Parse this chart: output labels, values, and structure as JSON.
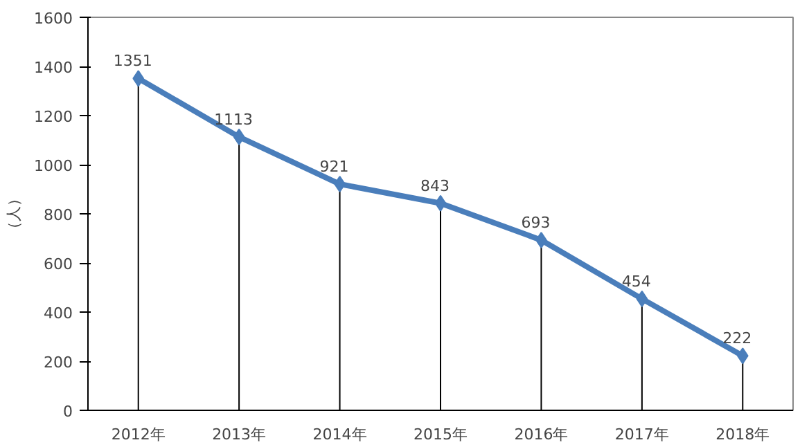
{
  "chart_data": {
    "type": "line",
    "ylabel": "（人）",
    "categories": [
      "2012年",
      "2013年",
      "2014年",
      "2015年",
      "2016年",
      "2017年",
      "2018年"
    ],
    "series": [
      {
        "color": "#4a7ebb",
        "values": [
          1351,
          1113,
          921,
          843,
          693,
          454,
          222
        ]
      }
    ],
    "ylim": [
      0,
      1600
    ],
    "yticks": [
      0,
      200,
      400,
      600,
      800,
      1000,
      1200,
      1400,
      1600
    ],
    "data_labels": true,
    "marker": "diamond",
    "line_style": "solid"
  }
}
